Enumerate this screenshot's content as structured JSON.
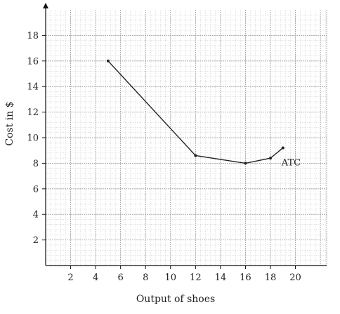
{
  "chart_data": {
    "type": "line",
    "title": "",
    "xlabel": "Output of shoes",
    "ylabel": "Cost in $",
    "xlim": [
      0,
      22.5
    ],
    "ylim": [
      0,
      20
    ],
    "x_ticks": [
      2,
      4,
      6,
      8,
      10,
      12,
      14,
      16,
      18,
      20
    ],
    "y_ticks": [
      2,
      4,
      6,
      8,
      10,
      12,
      14,
      16,
      18
    ],
    "grid": true,
    "minor_grid_step": 0.4,
    "series": [
      {
        "name": "ATC",
        "x": [
          5,
          12,
          16,
          18,
          19
        ],
        "y": [
          16,
          8.6,
          8,
          8.4,
          9.2
        ]
      }
    ],
    "colors": {
      "line": "#222222",
      "grid": "#bdbdbd",
      "axis": "#111111"
    }
  }
}
